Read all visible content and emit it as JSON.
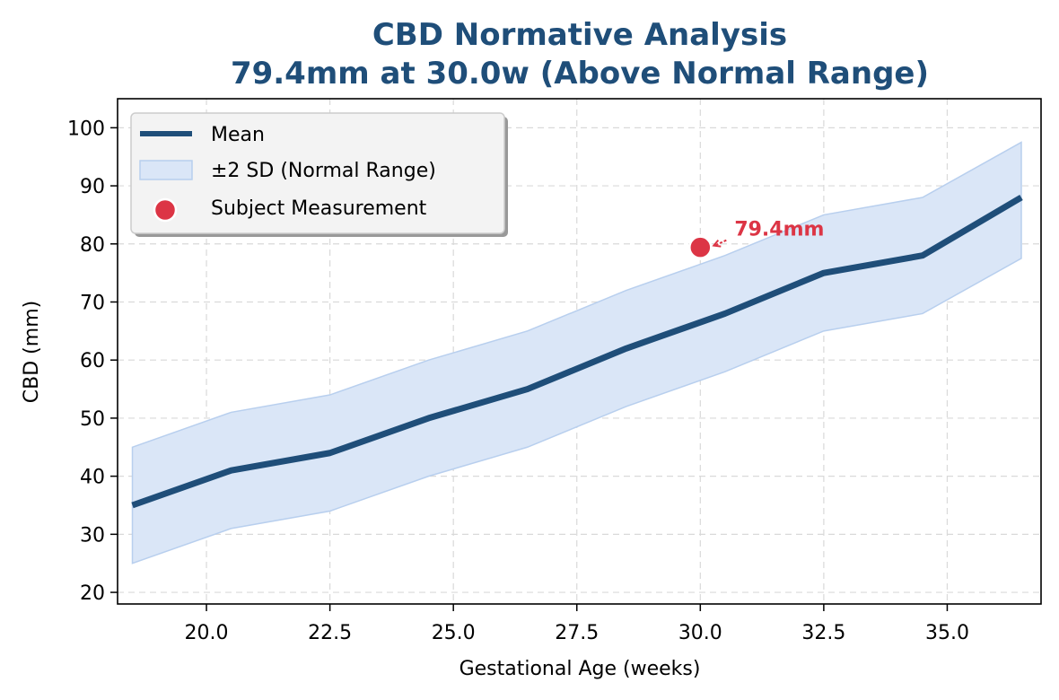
{
  "chart_data": {
    "type": "line",
    "title_line1": "CBD Normative Analysis",
    "title_line2": "79.4mm at 30.0w (Above Normal Range)",
    "xlabel": "Gestational Age (weeks)",
    "ylabel": "CBD (mm)",
    "xlim": [
      18.2,
      36.9
    ],
    "ylim": [
      18,
      105
    ],
    "xticks": [
      20.0,
      22.5,
      25.0,
      27.5,
      30.0,
      32.5,
      35.0
    ],
    "xtick_labels": [
      "20.0",
      "22.5",
      "25.0",
      "27.5",
      "30.0",
      "32.5",
      "35.0"
    ],
    "yticks": [
      20,
      30,
      40,
      50,
      60,
      70,
      80,
      90,
      100
    ],
    "ytick_labels": [
      "20",
      "30",
      "40",
      "50",
      "60",
      "70",
      "80",
      "90",
      "100"
    ],
    "grid": true,
    "legend_position": "top-left",
    "series": [
      {
        "name": "Mean",
        "x": [
          18.5,
          20.5,
          22.5,
          24.5,
          26.5,
          28.5,
          30.5,
          32.5,
          34.5,
          36.5
        ],
        "y": [
          35,
          41,
          44,
          50,
          55,
          62,
          68,
          75,
          78,
          88
        ]
      }
    ],
    "band": {
      "name": "±2 SD (Normal Range)",
      "x": [
        18.5,
        20.5,
        22.5,
        24.5,
        26.5,
        28.5,
        30.5,
        32.5,
        34.5,
        36.5
      ],
      "lower": [
        25,
        31,
        34,
        40,
        45,
        52,
        58,
        65,
        68,
        77.5
      ],
      "upper": [
        45,
        51,
        54,
        60,
        65,
        72,
        78,
        85,
        88,
        97.5
      ]
    },
    "subject": {
      "name": "Subject Measurement",
      "x": 30.0,
      "y": 79.4,
      "label": "79.4mm"
    }
  },
  "colors": {
    "title": "#1f4e79",
    "mean": "#1f4e79",
    "band_fill": "#dae6f7",
    "band_edge": "#b8cfee",
    "subject": "#dc3545"
  }
}
